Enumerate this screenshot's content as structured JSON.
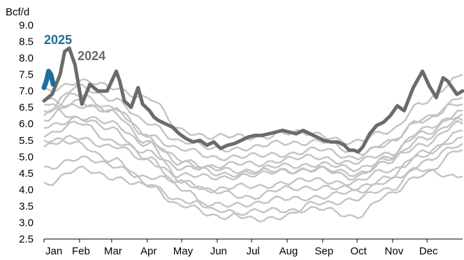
{
  "chart_data": {
    "type": "line",
    "unit_label": "Bcf/d",
    "y_ticks": [
      "9.0",
      "8.5",
      "8.0",
      "7.5",
      "7.0",
      "6.5",
      "6.0",
      "5.5",
      "5.0",
      "4.5",
      "4.0",
      "3.5",
      "3.0",
      "2.5"
    ],
    "ylim": [
      2.5,
      9.0
    ],
    "x_ticks": [
      "Jan",
      "Feb",
      "Mar",
      "Apr",
      "May",
      "Jun",
      "Jul",
      "Aug",
      "Sep",
      "Oct",
      "Nov",
      "Dec"
    ],
    "x_tick_days": [
      0,
      31,
      59,
      90,
      120,
      151,
      181,
      212,
      243,
      273,
      304,
      334
    ],
    "xlim": [
      0,
      365
    ],
    "grid": false,
    "colors": {
      "history": "#c3c3c3",
      "y2024": "#6b6b6b",
      "y2025": "#1f6e9c"
    },
    "labels": {
      "y2024": "2024",
      "y2025": "2025"
    },
    "series": [
      {
        "name": "2025",
        "x": [
          0,
          2,
          4,
          6,
          8
        ],
        "values": [
          7.1,
          7.3,
          7.6,
          7.5,
          7.2
        ]
      },
      {
        "name": "2024",
        "x": [
          0,
          7,
          14,
          18,
          22,
          27,
          33,
          40,
          47,
          55,
          63,
          66,
          70,
          76,
          82,
          86,
          92,
          96,
          100,
          106,
          112,
          118,
          124,
          130,
          136,
          142,
          148,
          154,
          160,
          166,
          172,
          178,
          184,
          190,
          196,
          202,
          208,
          214,
          220,
          226,
          232,
          238,
          244,
          250,
          256,
          262,
          266,
          270,
          274,
          278,
          284,
          290,
          296,
          302,
          308,
          314,
          322,
          330,
          336,
          342,
          348,
          352,
          356,
          360,
          365
        ],
        "values": [
          6.7,
          6.9,
          7.5,
          8.2,
          8.3,
          7.8,
          6.6,
          7.2,
          7.0,
          7.0,
          7.6,
          7.3,
          6.7,
          6.5,
          7.1,
          6.6,
          6.4,
          6.2,
          6.1,
          6.0,
          5.9,
          5.7,
          5.55,
          5.45,
          5.5,
          5.35,
          5.45,
          5.25,
          5.35,
          5.4,
          5.5,
          5.6,
          5.65,
          5.65,
          5.7,
          5.75,
          5.8,
          5.75,
          5.7,
          5.8,
          5.7,
          5.6,
          5.5,
          5.45,
          5.45,
          5.35,
          5.2,
          5.2,
          5.15,
          5.3,
          5.7,
          5.95,
          6.05,
          6.25,
          6.55,
          6.4,
          7.1,
          7.6,
          7.15,
          6.8,
          7.4,
          7.3,
          7.1,
          6.9,
          7.0
        ]
      }
    ],
    "history_series": [
      {
        "x": [
          0,
          30,
          60,
          90,
          120,
          150,
          180,
          210,
          240,
          270,
          300,
          330,
          365
        ],
        "values": [
          7.0,
          7.3,
          7.1,
          6.8,
          5.8,
          5.6,
          5.6,
          5.7,
          5.7,
          5.4,
          5.8,
          6.6,
          7.5
        ]
      },
      {
        "x": [
          0,
          30,
          60,
          90,
          120,
          150,
          180,
          210,
          240,
          270,
          300,
          330,
          365
        ],
        "values": [
          6.4,
          7.1,
          6.8,
          6.0,
          5.5,
          5.2,
          5.3,
          5.4,
          5.5,
          5.1,
          5.4,
          6.1,
          6.8
        ]
      },
      {
        "x": [
          0,
          30,
          60,
          90,
          120,
          150,
          180,
          210,
          240,
          270,
          300,
          330,
          365
        ],
        "values": [
          6.1,
          6.7,
          6.4,
          5.7,
          5.2,
          5.0,
          5.0,
          5.1,
          5.2,
          5.0,
          5.4,
          6.2,
          6.6
        ]
      },
      {
        "x": [
          0,
          30,
          60,
          90,
          120,
          150,
          180,
          210,
          240,
          270,
          300,
          330,
          365
        ],
        "values": [
          5.9,
          6.2,
          6.0,
          5.4,
          4.9,
          4.7,
          4.8,
          4.9,
          5.0,
          4.8,
          5.1,
          5.8,
          6.3
        ]
      },
      {
        "x": [
          0,
          30,
          60,
          90,
          120,
          150,
          180,
          210,
          240,
          270,
          300,
          330,
          365
        ],
        "values": [
          5.7,
          6.0,
          5.5,
          5.1,
          4.7,
          4.6,
          4.6,
          4.7,
          4.8,
          4.6,
          5.0,
          5.7,
          6.4
        ]
      },
      {
        "x": [
          0,
          30,
          60,
          90,
          120,
          150,
          180,
          210,
          240,
          270,
          300,
          330,
          365
        ],
        "values": [
          5.3,
          5.6,
          5.3,
          4.9,
          4.4,
          4.4,
          4.4,
          4.6,
          4.6,
          4.4,
          4.9,
          5.4,
          6.0
        ]
      },
      {
        "x": [
          0,
          30,
          60,
          90,
          120,
          150,
          180,
          210,
          240,
          270,
          300,
          330,
          365
        ],
        "values": [
          4.6,
          5.0,
          4.7,
          4.4,
          4.2,
          4.0,
          4.1,
          4.2,
          4.3,
          4.2,
          4.6,
          5.0,
          5.8
        ]
      },
      {
        "x": [
          0,
          30,
          60,
          90,
          120,
          150,
          180,
          210,
          240,
          270,
          300,
          330,
          365
        ],
        "values": [
          4.2,
          4.6,
          4.4,
          4.1,
          3.7,
          3.5,
          3.6,
          3.7,
          3.8,
          3.9,
          4.3,
          4.6,
          4.4
        ]
      },
      {
        "x": [
          0,
          30,
          60,
          90,
          120,
          150,
          180,
          210,
          240,
          270,
          300,
          330,
          365
        ],
        "values": [
          5.5,
          5.4,
          4.9,
          4.2,
          3.5,
          3.2,
          3.3,
          3.4,
          3.4,
          3.2,
          3.8,
          4.5,
          5.2
        ]
      },
      {
        "x": [
          0,
          30,
          60,
          90,
          120,
          150,
          180,
          210,
          240,
          270,
          300,
          330,
          365
        ],
        "values": [
          6.6,
          6.2,
          5.8,
          5.0,
          4.0,
          3.4,
          3.1,
          3.2,
          3.6,
          3.7,
          4.0,
          4.8,
          5.4
        ]
      },
      {
        "x": [
          0,
          30,
          60,
          90,
          120,
          150,
          180,
          210,
          240,
          270,
          300,
          330,
          365
        ],
        "values": [
          6.8,
          6.5,
          6.4,
          5.4,
          4.3,
          3.9,
          3.8,
          4.0,
          4.1,
          4.0,
          4.4,
          5.1,
          5.6
        ]
      },
      {
        "x": [
          0,
          30,
          60,
          90,
          120,
          150,
          180,
          210,
          240,
          270,
          300,
          330,
          365
        ],
        "values": [
          6.3,
          6.9,
          6.5,
          5.6,
          4.8,
          4.5,
          4.5,
          4.6,
          4.6,
          4.5,
          4.8,
          5.6,
          6.1
        ]
      }
    ]
  }
}
